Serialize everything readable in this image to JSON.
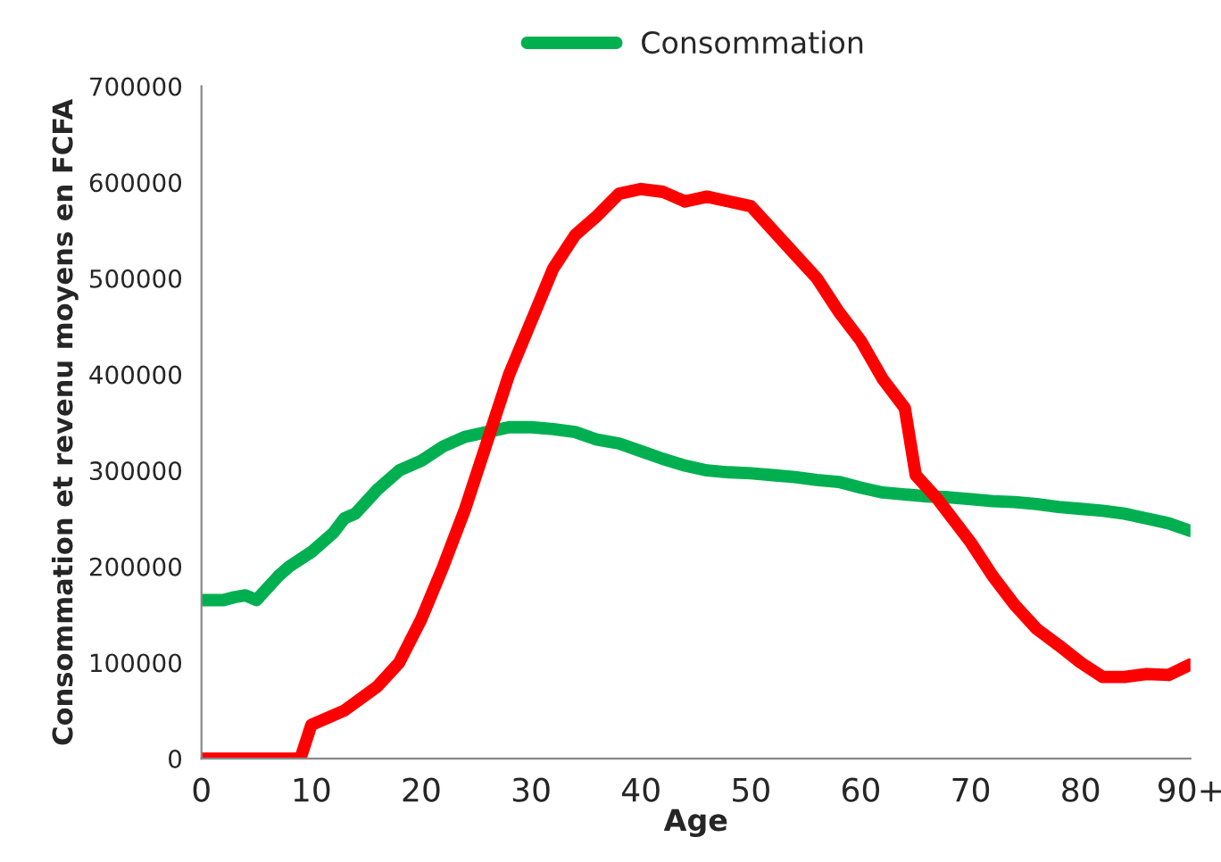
{
  "chart_data": {
    "type": "line",
    "xlabel": "Age",
    "ylabel": "Consommation et revenu moyens en FCFA",
    "xlim": [
      0,
      90
    ],
    "xticks": [
      0,
      10,
      20,
      30,
      40,
      50,
      60,
      70,
      80,
      {
        "value": 90,
        "label": "90+"
      }
    ],
    "ylim": [
      0,
      700000
    ],
    "yticks": [
      0,
      100000,
      200000,
      300000,
      400000,
      500000,
      600000,
      700000
    ],
    "grid": false,
    "legend": "top",
    "marker": "none",
    "line_style": "solid",
    "series": [
      {
        "name": "Consommation",
        "color": "#00b050",
        "x": [
          0,
          2,
          3,
          4,
          5,
          7,
          8,
          10,
          12,
          13,
          14,
          16,
          18,
          20,
          22,
          24,
          26,
          28,
          30,
          32,
          34,
          36,
          38,
          40,
          42,
          44,
          46,
          48,
          50,
          52,
          54,
          56,
          58,
          60,
          62,
          64,
          66,
          68,
          70,
          72,
          74,
          76,
          78,
          80,
          82,
          84,
          86,
          88,
          90
        ],
        "values": [
          165000,
          165000,
          168000,
          170000,
          165000,
          190000,
          200000,
          215000,
          235000,
          250000,
          255000,
          280000,
          300000,
          310000,
          325000,
          335000,
          340000,
          345000,
          345000,
          343000,
          340000,
          332000,
          328000,
          320000,
          312000,
          305000,
          300000,
          298000,
          297000,
          295000,
          293000,
          290000,
          288000,
          282000,
          277000,
          275000,
          273000,
          272000,
          270000,
          268000,
          267000,
          265000,
          262000,
          260000,
          258000,
          255000,
          250000,
          245000,
          237000
        ]
      },
      {
        "color": "#ff0000",
        "x": [
          0,
          9,
          10,
          13,
          16,
          18,
          20,
          22,
          24,
          26,
          28,
          30,
          32,
          34,
          36,
          38,
          40,
          42,
          44,
          46,
          48,
          50,
          52,
          54,
          56,
          58,
          60,
          62,
          64,
          65,
          67,
          70,
          72,
          74,
          76,
          78,
          80,
          82,
          84,
          86,
          88,
          90
        ],
        "values": [
          0,
          0,
          35000,
          50000,
          75000,
          100000,
          145000,
          200000,
          260000,
          330000,
          400000,
          455000,
          510000,
          545000,
          565000,
          588000,
          593000,
          590000,
          580000,
          585000,
          580000,
          575000,
          550000,
          525000,
          500000,
          465000,
          435000,
          395000,
          365000,
          295000,
          270000,
          225000,
          190000,
          160000,
          135000,
          118000,
          100000,
          85000,
          85000,
          88000,
          87000,
          98000
        ]
      }
    ]
  }
}
